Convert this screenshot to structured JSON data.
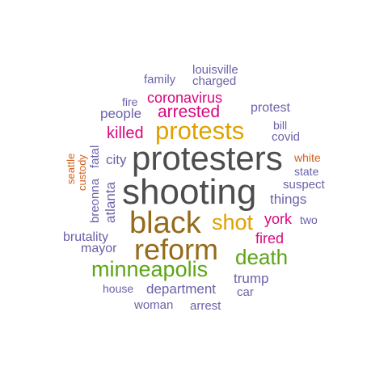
{
  "colors": {
    "gray": "#4d4d4d",
    "gold": "#e0a100",
    "brown": "#956b1a",
    "green": "#5ca514",
    "magenta": "#d9077d",
    "purple": "#6b62a8",
    "orange": "#d3601b"
  },
  "words": {
    "protesters": "protesters",
    "shooting": "shooting",
    "black": "black",
    "reform": "reform",
    "protests": "protests",
    "shot": "shot",
    "minneapolis": "minneapolis",
    "death": "death",
    "arrested": "arrested",
    "coronavirus": "coronavirus",
    "killed": "killed",
    "york": "york",
    "fired": "fired",
    "louisville": "louisville",
    "family": "family",
    "charged": "charged",
    "fire": "fire",
    "people": "people",
    "protest": "protest",
    "bill": "bill",
    "covid": "covid",
    "city": "city",
    "white": "white",
    "state": "state",
    "suspect": "suspect",
    "things": "things",
    "two": "two",
    "brutality": "brutality",
    "mayor": "mayor",
    "trump": "trump",
    "car": "car",
    "house": "house",
    "department": "department",
    "woman": "woman",
    "arrest": "arrest",
    "seattle": "seattle",
    "custody": "custody",
    "breonna": "breonna",
    "fatal": "fatal",
    "atlanta": "atlanta"
  }
}
